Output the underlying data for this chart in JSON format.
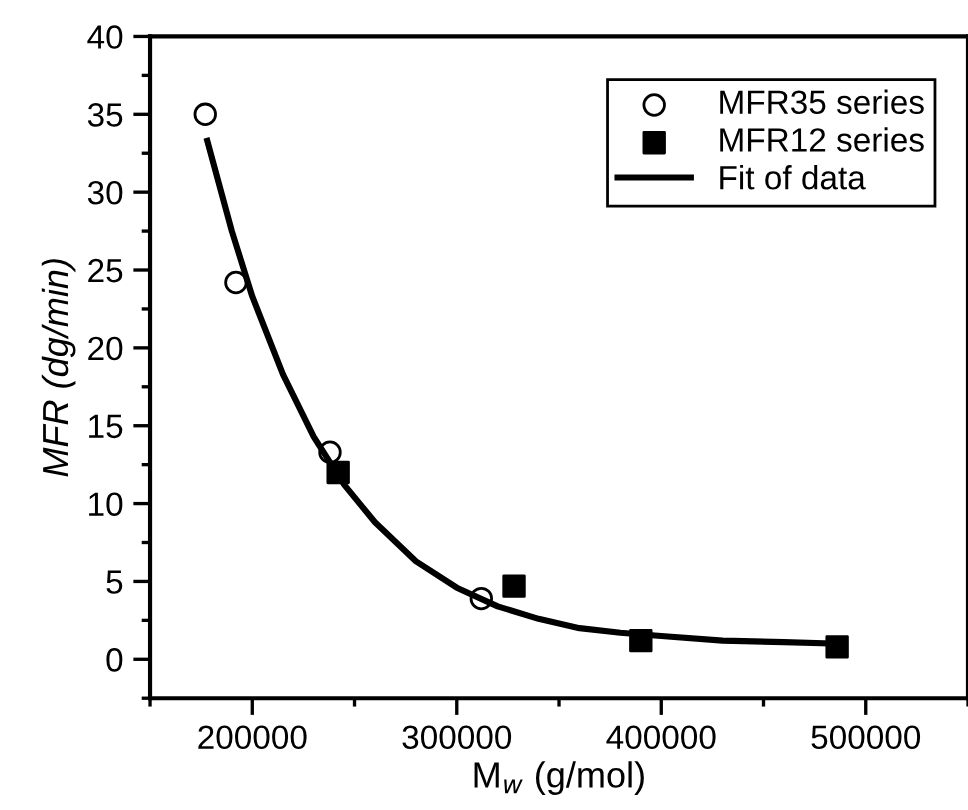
{
  "chart_data": {
    "type": "scatter",
    "xlabel": "M$_{w}$ (g/mol)",
    "ylabel": "MFR (dg/min)",
    "xlim": [
      150000,
      550000
    ],
    "xticks": [
      200000,
      300000,
      400000,
      500000
    ],
    "ylim": [
      -2.5,
      40
    ],
    "yticks": [
      0,
      5,
      10,
      15,
      20,
      25,
      30,
      35,
      40
    ],
    "grid": false,
    "legend": "top right",
    "series": [
      {
        "name": "MFR35 series",
        "marker": "circle",
        "color": "#000000",
        "x": [
          177000,
          192000,
          238000,
          312000
        ],
        "values": [
          35,
          24.2,
          13.3,
          3.9
        ]
      },
      {
        "name": "MFR12 series",
        "marker": "square",
        "color": "#000000",
        "x": [
          242000,
          328000,
          390000,
          486000
        ],
        "values": [
          12.0,
          4.7,
          1.2,
          0.8
        ]
      },
      {
        "name": "Fit of data",
        "type": "line",
        "marker": "none",
        "line_style": "solid",
        "color": "#000000",
        "x": [
          178000,
          190000,
          200000,
          215000,
          230000,
          245000,
          260000,
          280000,
          300000,
          320000,
          340000,
          360000,
          380000,
          400000,
          430000,
          460000,
          486000
        ],
        "values": [
          33.3,
          27.5,
          23.3,
          18.3,
          14.3,
          11.2,
          8.8,
          6.3,
          4.6,
          3.4,
          2.6,
          2.0,
          1.7,
          1.5,
          1.2,
          1.1,
          1.0
        ]
      }
    ]
  }
}
